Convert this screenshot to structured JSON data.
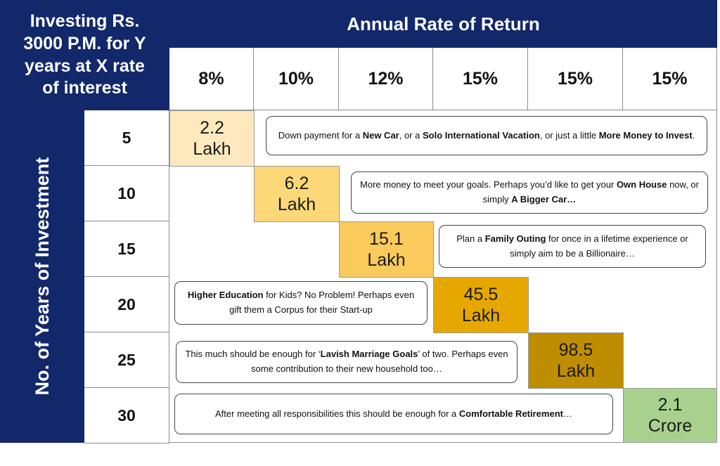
{
  "header": {
    "corner_lines": [
      "Investing Rs.",
      "3000 P.M. for Y",
      "years at X rate",
      "of interest"
    ],
    "rates_title": "Annual Rate of Return",
    "side_title": "No. of Years of Investment"
  },
  "rates": [
    "8%",
    "10%",
    "12%",
    "15%",
    "15%",
    "15%"
  ],
  "years": [
    "5",
    "10",
    "15",
    "20",
    "25",
    "30"
  ],
  "values": [
    {
      "line1": "2.2",
      "line2": "Lakh",
      "color": "#fde9bd"
    },
    {
      "line1": "6.2",
      "line2": "Lakh",
      "color": "#fcd878"
    },
    {
      "line1": "15.1",
      "line2": "Lakh",
      "color": "#fbca5c"
    },
    {
      "line1": "45.5",
      "line2": "Lakh",
      "color": "#e6a700"
    },
    {
      "line1": "98.5",
      "line2": "Lakh",
      "color": "#bf8d00"
    },
    {
      "line1": "2.1",
      "line2": "Crore",
      "color": "#a9d18e"
    }
  ],
  "notes": [
    {
      "pre": "Down payment for a ",
      "b1": "New Car",
      "mid1": ", or a ",
      "b2": "Solo International Vacation",
      "mid2": ", or just a little ",
      "b3": "More Money to Invest",
      "post": "."
    },
    {
      "pre": "More money to meet your goals. Perhaps you’d like to get your ",
      "b1": "Own House",
      "mid1": " now, or simply ",
      "b2": "A Bigger Car…",
      "mid2": "",
      "b3": "",
      "post": ""
    },
    {
      "pre": "Plan a ",
      "b1": "Family Outing",
      "mid1": " for once in a lifetime experience or simply aim to be a Billionaire…",
      "b2": "",
      "mid2": "",
      "b3": "",
      "post": ""
    },
    {
      "pre": "",
      "b1": "Higher Education",
      "mid1": " for Kids? No Problem! Perhaps even gift them a Corpus for their Start-up",
      "b2": "",
      "mid2": "",
      "b3": "",
      "post": ""
    },
    {
      "pre": "This much should be enough for ‘",
      "b1": "Lavish Marriage Goals",
      "mid1": "’ of two. Perhaps even some contribution to their new household too…",
      "b2": "",
      "mid2": "",
      "b3": "",
      "post": ""
    },
    {
      "pre": "After meeting all responsibilities this should be enough for a ",
      "b1": "Comfortable Retirement",
      "mid1": "…",
      "b2": "",
      "mid2": "",
      "b3": "",
      "post": ""
    }
  ]
}
